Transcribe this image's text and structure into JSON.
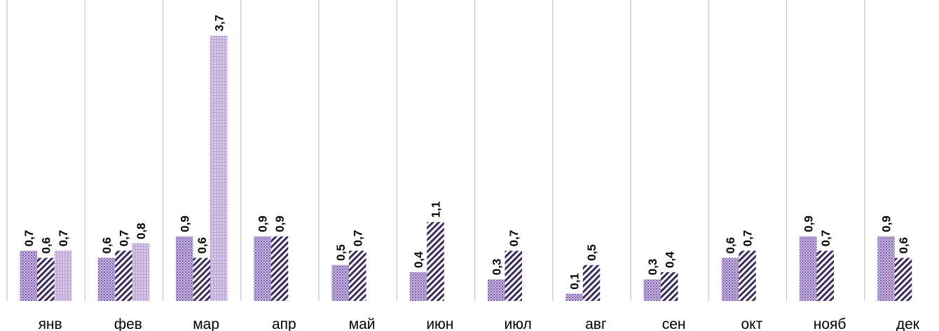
{
  "chart_data": {
    "type": "bar",
    "title": "",
    "xlabel": "",
    "ylabel": "",
    "ylim": [
      0,
      4
    ],
    "grid": "vertical separators between categories",
    "legend": "none",
    "categories": [
      "янв",
      "фев",
      "мар",
      "апр",
      "май",
      "июн",
      "июл",
      "авг",
      "сен",
      "окт",
      "нояб",
      "дек"
    ],
    "series": [
      {
        "pattern": "dots",
        "color": "#9d7fc0",
        "values": [
          0.7,
          0.6,
          0.9,
          0.9,
          0.5,
          0.4,
          0.3,
          0.1,
          0.3,
          0.6,
          0.9,
          0.9
        ],
        "labels": [
          "0,7",
          "0,6",
          "0,9",
          "0,9",
          "0,5",
          "0,4",
          "0,3",
          "0,1",
          "0,3",
          "0,6",
          "0,9",
          "0,9"
        ]
      },
      {
        "pattern": "diagonal-hatch",
        "color": "#3b2a5e",
        "values": [
          0.6,
          0.7,
          0.6,
          0.9,
          0.7,
          1.1,
          0.7,
          0.5,
          0.4,
          0.7,
          0.7,
          0.6
        ],
        "labels": [
          "0,6",
          "0,7",
          "0,6",
          "0,9",
          "0,7",
          "1,1",
          "0,7",
          "0,5",
          "0,4",
          "0,7",
          "0,7",
          "0,6"
        ]
      },
      {
        "pattern": "horizontal-dots",
        "color": "#b49ad6",
        "values": [
          0.7,
          0.8,
          3.7,
          null,
          null,
          null,
          null,
          null,
          null,
          null,
          null,
          null
        ],
        "labels": [
          "0,7",
          "0,8",
          "3,7",
          "",
          "",
          "",
          "",
          "",
          "",
          "",
          "",
          ""
        ]
      }
    ]
  }
}
